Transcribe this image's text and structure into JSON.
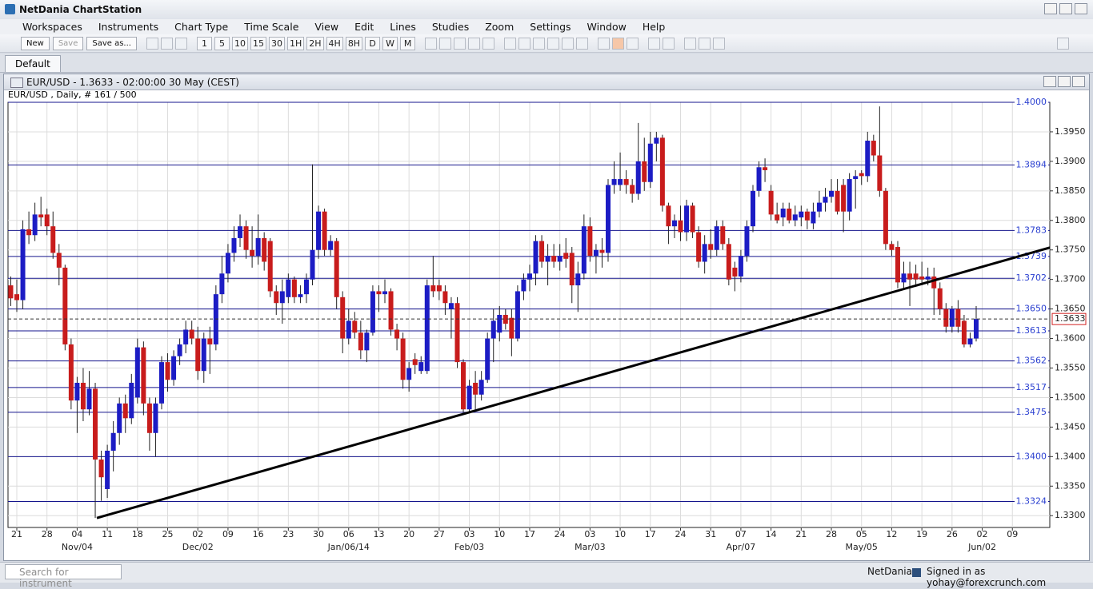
{
  "app": {
    "title": "NetDania ChartStation",
    "menu": [
      "Workspaces",
      "Instruments",
      "Chart Type",
      "Time Scale",
      "View",
      "Edit",
      "Lines",
      "Studies",
      "Zoom",
      "Settings",
      "Window",
      "Help"
    ],
    "buttons": [
      "New",
      "Save",
      "Save as..."
    ],
    "timeframes": [
      "1",
      "5",
      "10",
      "15",
      "30",
      "1H",
      "2H",
      "4H",
      "8H",
      "D",
      "W",
      "M"
    ],
    "tab": "Default",
    "window_title": "EUR/USD - 1.3633 - 02:00:00  30 May (CEST)",
    "search_placeholder": "Search for instrument",
    "status_brand": "NetDania",
    "status_user": "Signed in as yohay@forexcrunch.com"
  },
  "chart_data": {
    "type": "candlestick",
    "title": "EUR/USD , Daily, # 161 / 500",
    "up_color": "#1c1cc4",
    "down_color": "#c81c1c",
    "level_color": "#14148c",
    "xlim": [
      -0.46,
      172.2
    ],
    "ylim": [
      1.328,
      1.4
    ],
    "grid": true,
    "ohlc": [
      [
        1.369,
        1.3705,
        1.3655,
        1.3668
      ],
      [
        1.3675,
        1.37,
        1.3645,
        1.3665
      ],
      [
        1.3665,
        1.38,
        1.365,
        1.3785
      ],
      [
        1.3785,
        1.3815,
        1.376,
        1.3775
      ],
      [
        1.3775,
        1.383,
        1.3765,
        1.381
      ],
      [
        1.381,
        1.384,
        1.379,
        1.3805
      ],
      [
        1.381,
        1.382,
        1.3775,
        1.379
      ],
      [
        1.379,
        1.3815,
        1.3735,
        1.3745
      ],
      [
        1.3745,
        1.376,
        1.369,
        1.372
      ],
      [
        1.372,
        1.3725,
        1.358,
        1.359
      ],
      [
        1.359,
        1.36,
        1.348,
        1.3495
      ],
      [
        1.3495,
        1.3535,
        1.344,
        1.3525
      ],
      [
        1.3525,
        1.355,
        1.346,
        1.348
      ],
      [
        1.348,
        1.3545,
        1.347,
        1.3515
      ],
      [
        1.3515,
        1.3525,
        1.3296,
        1.3395
      ],
      [
        1.3395,
        1.341,
        1.3325,
        1.3365
      ],
      [
        1.3345,
        1.342,
        1.333,
        1.341
      ],
      [
        1.341,
        1.346,
        1.3375,
        1.344
      ],
      [
        1.344,
        1.35,
        1.342,
        1.349
      ],
      [
        1.349,
        1.3505,
        1.344,
        1.3465
      ],
      [
        1.3465,
        1.354,
        1.3455,
        1.3525
      ],
      [
        1.35,
        1.36,
        1.349,
        1.3585
      ],
      [
        1.3585,
        1.3595,
        1.347,
        1.349
      ],
      [
        1.349,
        1.35,
        1.341,
        1.344
      ],
      [
        1.344,
        1.35,
        1.34,
        1.349
      ],
      [
        1.349,
        1.357,
        1.348,
        1.356
      ],
      [
        1.356,
        1.3575,
        1.351,
        1.353
      ],
      [
        1.353,
        1.358,
        1.352,
        1.357
      ],
      [
        1.357,
        1.36,
        1.3555,
        1.359
      ],
      [
        1.359,
        1.363,
        1.3575,
        1.3615
      ],
      [
        1.3615,
        1.363,
        1.359,
        1.36
      ],
      [
        1.36,
        1.362,
        1.353,
        1.3545
      ],
      [
        1.3545,
        1.361,
        1.3525,
        1.36
      ],
      [
        1.36,
        1.362,
        1.354,
        1.359
      ],
      [
        1.359,
        1.369,
        1.358,
        1.3675
      ],
      [
        1.3675,
        1.374,
        1.366,
        1.371
      ],
      [
        1.371,
        1.376,
        1.3695,
        1.3745
      ],
      [
        1.3745,
        1.379,
        1.373,
        1.377
      ],
      [
        1.377,
        1.381,
        1.3755,
        1.379
      ],
      [
        1.379,
        1.38,
        1.3735,
        1.375
      ],
      [
        1.375,
        1.379,
        1.372,
        1.374
      ],
      [
        1.374,
        1.381,
        1.3725,
        1.377
      ],
      [
        1.377,
        1.378,
        1.3715,
        1.373
      ],
      [
        1.3765,
        1.377,
        1.367,
        1.368
      ],
      [
        1.368,
        1.369,
        1.364,
        1.366
      ],
      [
        1.366,
        1.37,
        1.3625,
        1.368
      ],
      [
        1.367,
        1.371,
        1.366,
        1.37
      ],
      [
        1.37,
        1.3705,
        1.366,
        1.367
      ],
      [
        1.367,
        1.369,
        1.366,
        1.3675
      ],
      [
        1.3675,
        1.371,
        1.366,
        1.37
      ],
      [
        1.37,
        1.3895,
        1.369,
        1.375
      ],
      [
        1.375,
        1.3825,
        1.3735,
        1.3815
      ],
      [
        1.3815,
        1.382,
        1.374,
        1.375
      ],
      [
        1.375,
        1.3775,
        1.374,
        1.3765
      ],
      [
        1.3765,
        1.377,
        1.365,
        1.367
      ],
      [
        1.367,
        1.368,
        1.3575,
        1.36
      ],
      [
        1.36,
        1.365,
        1.359,
        1.363
      ],
      [
        1.363,
        1.3645,
        1.36,
        1.361
      ],
      [
        1.361,
        1.363,
        1.3565,
        1.358
      ],
      [
        1.358,
        1.3615,
        1.356,
        1.361
      ],
      [
        1.361,
        1.369,
        1.3605,
        1.368
      ],
      [
        1.368,
        1.369,
        1.3645,
        1.3675
      ],
      [
        1.3675,
        1.37,
        1.366,
        1.368
      ],
      [
        1.368,
        1.3685,
        1.3605,
        1.3615
      ],
      [
        1.3615,
        1.3625,
        1.358,
        1.36
      ],
      [
        1.36,
        1.361,
        1.3515,
        1.353
      ],
      [
        1.353,
        1.356,
        1.351,
        1.355
      ],
      [
        1.3565,
        1.3575,
        1.354,
        1.3555
      ],
      [
        1.3545,
        1.357,
        1.354,
        1.356
      ],
      [
        1.3545,
        1.37,
        1.354,
        1.369
      ],
      [
        1.369,
        1.374,
        1.367,
        1.368
      ],
      [
        1.369,
        1.37,
        1.3665,
        1.368
      ],
      [
        1.368,
        1.369,
        1.364,
        1.366
      ],
      [
        1.365,
        1.367,
        1.36,
        1.366
      ],
      [
        1.366,
        1.367,
        1.355,
        1.356
      ],
      [
        1.356,
        1.3565,
        1.3475,
        1.348
      ],
      [
        1.348,
        1.353,
        1.3475,
        1.352
      ],
      [
        1.3525,
        1.3545,
        1.348,
        1.3505
      ],
      [
        1.3505,
        1.3545,
        1.3495,
        1.353
      ],
      [
        1.353,
        1.361,
        1.3525,
        1.36
      ],
      [
        1.36,
        1.365,
        1.356,
        1.363
      ],
      [
        1.361,
        1.3655,
        1.3595,
        1.364
      ],
      [
        1.364,
        1.365,
        1.3615,
        1.3625
      ],
      [
        1.3635,
        1.365,
        1.357,
        1.36
      ],
      [
        1.36,
        1.369,
        1.3595,
        1.368
      ],
      [
        1.368,
        1.371,
        1.3665,
        1.37
      ],
      [
        1.37,
        1.3725,
        1.368,
        1.371
      ],
      [
        1.371,
        1.3775,
        1.369,
        1.3765
      ],
      [
        1.3765,
        1.3775,
        1.372,
        1.373
      ],
      [
        1.373,
        1.376,
        1.369,
        1.374
      ],
      [
        1.374,
        1.376,
        1.372,
        1.373
      ],
      [
        1.373,
        1.376,
        1.3715,
        1.374
      ],
      [
        1.3745,
        1.377,
        1.372,
        1.3735
      ],
      [
        1.3745,
        1.3755,
        1.366,
        1.369
      ],
      [
        1.369,
        1.373,
        1.3645,
        1.371
      ],
      [
        1.371,
        1.381,
        1.37,
        1.379
      ],
      [
        1.379,
        1.3805,
        1.373,
        1.374
      ],
      [
        1.374,
        1.376,
        1.371,
        1.375
      ],
      [
        1.375,
        1.377,
        1.372,
        1.3745
      ],
      [
        1.3745,
        1.387,
        1.373,
        1.386
      ],
      [
        1.386,
        1.39,
        1.3845,
        1.387
      ],
      [
        1.386,
        1.3915,
        1.385,
        1.387
      ],
      [
        1.387,
        1.3885,
        1.3845,
        1.386
      ],
      [
        1.386,
        1.387,
        1.383,
        1.3845
      ],
      [
        1.3845,
        1.3965,
        1.3835,
        1.39
      ],
      [
        1.39,
        1.394,
        1.385,
        1.3865
      ],
      [
        1.3865,
        1.395,
        1.3855,
        1.393
      ],
      [
        1.393,
        1.395,
        1.39,
        1.394
      ],
      [
        1.394,
        1.3945,
        1.3815,
        1.3825
      ],
      [
        1.3825,
        1.383,
        1.376,
        1.379
      ],
      [
        1.379,
        1.381,
        1.377,
        1.38
      ],
      [
        1.38,
        1.3825,
        1.3765,
        1.378
      ],
      [
        1.378,
        1.3835,
        1.3765,
        1.3825
      ],
      [
        1.3825,
        1.383,
        1.377,
        1.378
      ],
      [
        1.378,
        1.379,
        1.372,
        1.373
      ],
      [
        1.373,
        1.3775,
        1.371,
        1.376
      ],
      [
        1.376,
        1.3785,
        1.3735,
        1.375
      ],
      [
        1.375,
        1.38,
        1.374,
        1.379
      ],
      [
        1.379,
        1.38,
        1.375,
        1.376
      ],
      [
        1.376,
        1.377,
        1.369,
        1.37
      ],
      [
        1.372,
        1.373,
        1.368,
        1.3705
      ],
      [
        1.3705,
        1.375,
        1.3695,
        1.374
      ],
      [
        1.374,
        1.38,
        1.373,
        1.379
      ],
      [
        1.379,
        1.386,
        1.378,
        1.385
      ],
      [
        1.385,
        1.39,
        1.384,
        1.389
      ],
      [
        1.389,
        1.3905,
        1.3865,
        1.3885
      ],
      [
        1.385,
        1.386,
        1.38,
        1.381
      ],
      [
        1.381,
        1.383,
        1.3795,
        1.38
      ],
      [
        1.3805,
        1.383,
        1.379,
        1.382
      ],
      [
        1.382,
        1.383,
        1.3795,
        1.38
      ],
      [
        1.38,
        1.3825,
        1.379,
        1.381
      ],
      [
        1.3805,
        1.3825,
        1.379,
        1.3815
      ],
      [
        1.3815,
        1.382,
        1.3785,
        1.38
      ],
      [
        1.3795,
        1.383,
        1.3785,
        1.3815
      ],
      [
        1.3815,
        1.385,
        1.3805,
        1.383
      ],
      [
        1.383,
        1.3855,
        1.3815,
        1.384
      ],
      [
        1.384,
        1.387,
        1.383,
        1.385
      ],
      [
        1.385,
        1.387,
        1.381,
        1.3815
      ],
      [
        1.386,
        1.387,
        1.378,
        1.3815
      ],
      [
        1.3815,
        1.388,
        1.38,
        1.387
      ],
      [
        1.387,
        1.3885,
        1.382,
        1.3875
      ],
      [
        1.388,
        1.3885,
        1.386,
        1.3875
      ],
      [
        1.3875,
        1.395,
        1.3865,
        1.3935
      ],
      [
        1.3935,
        1.3945,
        1.39,
        1.391
      ],
      [
        1.391,
        1.3993,
        1.384,
        1.385
      ],
      [
        1.385,
        1.3855,
        1.375,
        1.376
      ],
      [
        1.376,
        1.3765,
        1.374,
        1.375
      ],
      [
        1.3755,
        1.3765,
        1.3685,
        1.3695
      ],
      [
        1.3695,
        1.373,
        1.3685,
        1.371
      ],
      [
        1.371,
        1.373,
        1.3655,
        1.37
      ],
      [
        1.371,
        1.3725,
        1.369,
        1.37
      ],
      [
        1.3705,
        1.373,
        1.369,
        1.37
      ],
      [
        1.37,
        1.372,
        1.369,
        1.3705
      ],
      [
        1.3705,
        1.372,
        1.364,
        1.3685
      ],
      [
        1.3685,
        1.3695,
        1.364,
        1.365
      ],
      [
        1.365,
        1.366,
        1.361,
        1.362
      ],
      [
        1.362,
        1.3655,
        1.361,
        1.365
      ],
      [
        1.365,
        1.3665,
        1.361,
        1.362
      ],
      [
        1.363,
        1.364,
        1.3585,
        1.359
      ],
      [
        1.359,
        1.361,
        1.3585,
        1.36
      ],
      [
        1.36,
        1.3655,
        1.3595,
        1.3633
      ]
    ],
    "xticks": [
      {
        "value": 1,
        "label": "21"
      },
      {
        "value": 6,
        "label": "28"
      },
      {
        "value": 11,
        "label": "04"
      },
      {
        "value": 16,
        "label": "11"
      },
      {
        "value": 21,
        "label": "18"
      },
      {
        "value": 26,
        "label": "25"
      },
      {
        "value": 31,
        "label": "02"
      },
      {
        "value": 36,
        "label": "09"
      },
      {
        "value": 41,
        "label": "16"
      },
      {
        "value": 46,
        "label": "23"
      },
      {
        "value": 51,
        "label": "30"
      },
      {
        "value": 56,
        "label": "06"
      },
      {
        "value": 61,
        "label": "13"
      },
      {
        "value": 66,
        "label": "20"
      },
      {
        "value": 71,
        "label": "27"
      },
      {
        "value": 76,
        "label": "03"
      },
      {
        "value": 81,
        "label": "10"
      },
      {
        "value": 86,
        "label": "17"
      },
      {
        "value": 91,
        "label": "24"
      },
      {
        "value": 96,
        "label": "03"
      },
      {
        "value": 101,
        "label": "10"
      },
      {
        "value": 106,
        "label": "17"
      },
      {
        "value": 111,
        "label": "24"
      },
      {
        "value": 116,
        "label": "31"
      },
      {
        "value": 121,
        "label": "07"
      },
      {
        "value": 126,
        "label": "14"
      },
      {
        "value": 131,
        "label": "21"
      },
      {
        "value": 136,
        "label": "28"
      },
      {
        "value": 141,
        "label": "05"
      },
      {
        "value": 146,
        "label": "12"
      },
      {
        "value": 151,
        "label": "19"
      },
      {
        "value": 156,
        "label": "26"
      },
      {
        "value": 161,
        "label": "02"
      },
      {
        "value": 166,
        "label": "09"
      }
    ],
    "xticks_major": [
      {
        "value": 11,
        "label": "Nov/04"
      },
      {
        "value": 31,
        "label": "Dec/02"
      },
      {
        "value": 56,
        "label": "Jan/06/14"
      },
      {
        "value": 76,
        "label": "Feb/03"
      },
      {
        "value": 96,
        "label": "Mar/03"
      },
      {
        "value": 121,
        "label": "Apr/07"
      },
      {
        "value": 141,
        "label": "May/05"
      },
      {
        "value": 161,
        "label": "Jun/02"
      }
    ],
    "yticks": [
      {
        "value": 1.33,
        "label": "1.3300"
      },
      {
        "value": 1.335,
        "label": "1.3350"
      },
      {
        "value": 1.34,
        "label": "1.3400"
      },
      {
        "value": 1.345,
        "label": "1.3450"
      },
      {
        "value": 1.35,
        "label": "1.3500"
      },
      {
        "value": 1.355,
        "label": "1.3550"
      },
      {
        "value": 1.36,
        "label": "1.3600"
      },
      {
        "value": 1.365,
        "label": "1.3650"
      },
      {
        "value": 1.37,
        "label": "1.3700"
      },
      {
        "value": 1.375,
        "label": "1.3750"
      },
      {
        "value": 1.38,
        "label": "1.3800"
      },
      {
        "value": 1.385,
        "label": "1.3850"
      },
      {
        "value": 1.39,
        "label": "1.3900"
      },
      {
        "value": 1.395,
        "label": "1.3950"
      }
    ],
    "levels": [
      {
        "value": 1.4,
        "label": "1.4000"
      },
      1.3894,
      1.3783,
      1.3739,
      1.3702,
      {
        "value": 1.365,
        "label": "1.3650"
      },
      1.3613,
      1.3562,
      1.3517,
      1.3475,
      {
        "value": 1.34,
        "label": "1.3400"
      },
      1.3324
    ],
    "last_price": 1.3633,
    "trendline": {
      "x": [
        14.26,
        172.2
      ],
      "y": [
        1.3296,
        1.3754
      ]
    }
  }
}
